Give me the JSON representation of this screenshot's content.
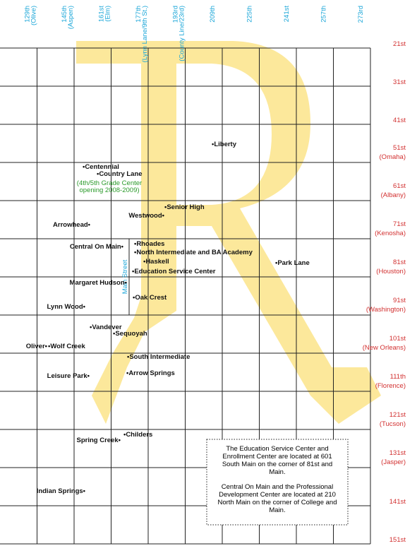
{
  "columns": [
    {
      "street": "129th",
      "name": "(Olive)"
    },
    {
      "street": "145th",
      "name": "(Aspen)"
    },
    {
      "street": "161st",
      "name": "(Elm)"
    },
    {
      "street": "177th",
      "name": "(Lynn Lane/9th St.)"
    },
    {
      "street": "193rd",
      "name": "(County Line/23rd)"
    },
    {
      "street": "209th"
    },
    {
      "street": "225th"
    },
    {
      "street": "241st"
    },
    {
      "street": "257th"
    },
    {
      "street": "273rd"
    }
  ],
  "rows": [
    {
      "street": "21st"
    },
    {
      "street": "31st"
    },
    {
      "street": "41st"
    },
    {
      "street": "51st",
      "name": "(Omaha)"
    },
    {
      "street": "61st",
      "name": "(Albany)"
    },
    {
      "street": "71st",
      "name": "(Kenosha)"
    },
    {
      "street": "81st",
      "name": "(Houston)"
    },
    {
      "street": "91st",
      "name": "(Washington)"
    },
    {
      "street": "101st",
      "name": "(New Orleans)"
    },
    {
      "street": "111th",
      "name": "(Florence)"
    },
    {
      "street": "121st",
      "name": "(Tucson)"
    },
    {
      "street": "131st",
      "name": "(Jasper)"
    },
    {
      "street": "141st"
    },
    {
      "street": "151st"
    }
  ],
  "main_street": "Main Street",
  "schools": [
    {
      "label": "•Liberty"
    },
    {
      "label": "•Centennial"
    },
    {
      "label": "•Country Lane"
    },
    {
      "label": "•Senior High"
    },
    {
      "label": "Westwood•"
    },
    {
      "label": "Arrowhead•"
    },
    {
      "label": "•Rhoades"
    },
    {
      "label": "Central On Main•"
    },
    {
      "label": "•North Intermediate and BA Academy"
    },
    {
      "label": "•Haskell"
    },
    {
      "label": "•Park Lane"
    },
    {
      "label": "•Education Service Center"
    },
    {
      "label": "Margaret Hudson•"
    },
    {
      "label": "•Oak Crest"
    },
    {
      "label": "Lynn Wood•"
    },
    {
      "label": "•Vandever"
    },
    {
      "label": "•Sequoyah"
    },
    {
      "label": "Oliver•"
    },
    {
      "label": "•Wolf Creek"
    },
    {
      "label": "•South Intermediate"
    },
    {
      "label": "•Arrow Springs"
    },
    {
      "label": "Leisure Park•"
    },
    {
      "label": "•Childers"
    },
    {
      "label": "Spring Creek•"
    },
    {
      "label": "Indian Springs•"
    }
  ],
  "grade_center_note": [
    "(4th/5th Grade Center",
    "opening 2008-2009)"
  ],
  "note": {
    "paragraphs": [
      [
        "The Education Service Center and",
        "Enrollment Center are located at 601",
        "South Main on the corner of 81st and",
        "Main."
      ],
      [
        "Central On Main and the Professional",
        "Development Center are located at 210",
        "North Main on the corner of College and",
        "Main."
      ]
    ]
  }
}
